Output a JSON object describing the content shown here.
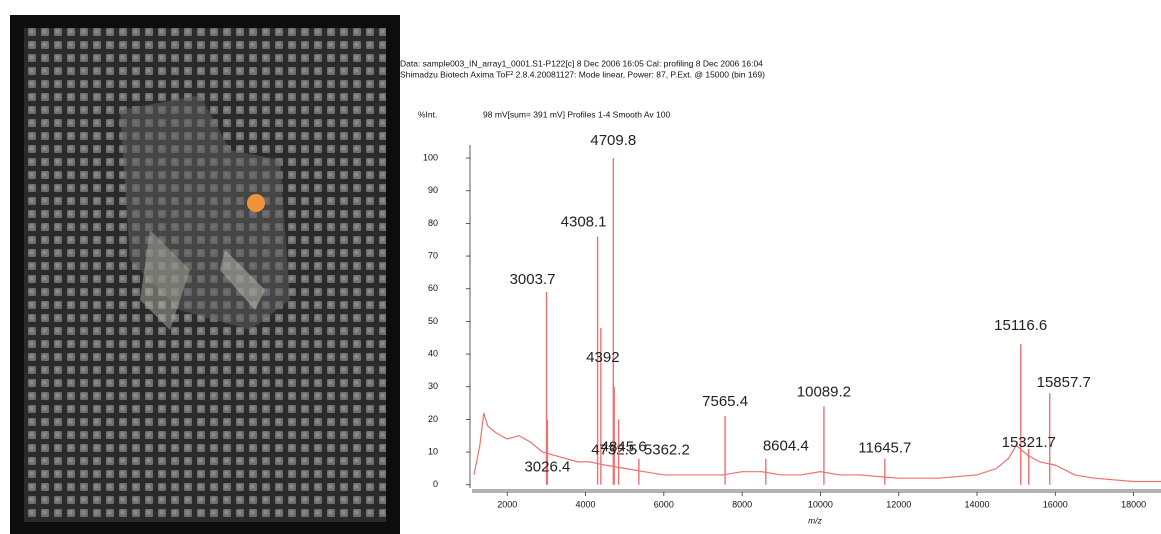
{
  "chart_data": {
    "type": "spectrum",
    "header": [
      "Data: sample003_IN_array1_0001.S1-P122[c] 8 Dec 2006 16:05 Cal: profiling 8 Dec 2006 16:04",
      "Shimadzu Biotech Axima ToF² 2.8.4.20081127: Mode linear, Power: 87, P.Ext. @ 15000 (bin 169)"
    ],
    "ylabel": "%Int.",
    "subtitle": "98 mV[sum= 391 mV]  Profiles 1-4 Smooth Av 100",
    "xlabel": "m/z",
    "color": "#f07070",
    "x": [
      1150,
      1300,
      1400,
      1500,
      1700,
      2000,
      2300,
      2600,
      2900,
      3200,
      3500,
      3800,
      4100,
      4500,
      5000,
      5500,
      6000,
      7000,
      7500,
      8000,
      8500,
      9000,
      9500,
      10000,
      10500,
      11000,
      12000,
      13000,
      14000,
      14500,
      14800,
      15000,
      15300,
      15600,
      16000,
      16500,
      17000,
      18000,
      18700
    ],
    "values": [
      3,
      12,
      22,
      18,
      16,
      14,
      15,
      13,
      10,
      9,
      8,
      7,
      7,
      6,
      5,
      4,
      3,
      3,
      3,
      4,
      4,
      3,
      3,
      4,
      3,
      3,
      2,
      2,
      3,
      5,
      8,
      12,
      9,
      7,
      6,
      3,
      2,
      1,
      1
    ],
    "peaks": {
      "x": [
        4709.8,
        4308.1,
        3003.7,
        4392.0,
        4732.5,
        3026.4,
        4845.6,
        5362.2,
        7565.4,
        8604.4,
        10089.2,
        11645.7,
        15116.6,
        15857.7,
        15321.7
      ],
      "values": [
        100,
        76,
        59,
        48,
        30,
        20,
        20,
        8,
        21,
        8,
        24,
        8,
        43,
        28,
        11
      ]
    },
    "xlim": [
      1100,
      18700
    ],
    "ylim": [
      -1,
      104
    ],
    "xticks": [
      2000,
      4000,
      6000,
      8000,
      10000,
      12000,
      14000,
      16000,
      18000
    ],
    "yticks": [
      0,
      10,
      20,
      30,
      40,
      50,
      60,
      70,
      80,
      90,
      100
    ]
  }
}
